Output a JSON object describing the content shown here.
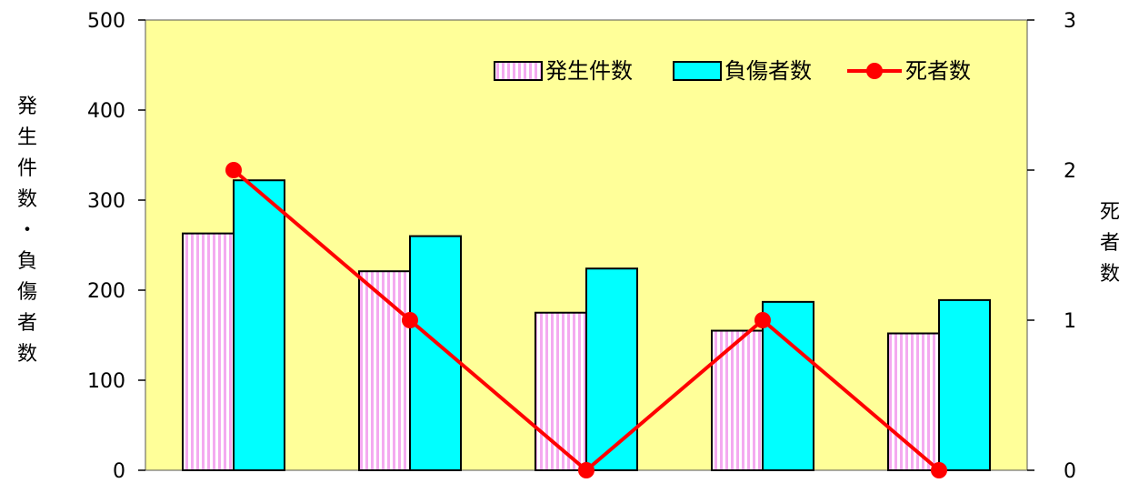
{
  "chart_data": {
    "type": "bar",
    "categories": [
      "",
      "",
      "",
      "",
      ""
    ],
    "series": [
      {
        "name": "発生件数",
        "kind": "bar",
        "axis": "left",
        "values": [
          263,
          221,
          175,
          155,
          152
        ],
        "color": "#f4aaf0",
        "pattern": "vertical-stripes"
      },
      {
        "name": "負傷者数",
        "kind": "bar",
        "axis": "left",
        "values": [
          322,
          260,
          224,
          187,
          189
        ],
        "color": "#00ffff"
      },
      {
        "name": "死者数",
        "kind": "line",
        "axis": "right",
        "values": [
          2,
          1,
          0,
          1,
          0
        ],
        "color": "#ff0000"
      }
    ],
    "ylabel_left_chars": [
      "発",
      "生",
      "件",
      "数",
      "・",
      "負",
      "傷",
      "者",
      "数"
    ],
    "ylabel_right_chars": [
      "死",
      "者",
      "数"
    ],
    "ylim_left": [
      0,
      500
    ],
    "yticks_left": [
      "0",
      "100",
      "200",
      "300",
      "400",
      "500"
    ],
    "ylim_right": [
      0,
      3
    ],
    "yticks_right": [
      "0",
      "1",
      "2",
      "3"
    ],
    "plot_background": "#ffff99",
    "legend_position": "top-right",
    "grid": false
  }
}
